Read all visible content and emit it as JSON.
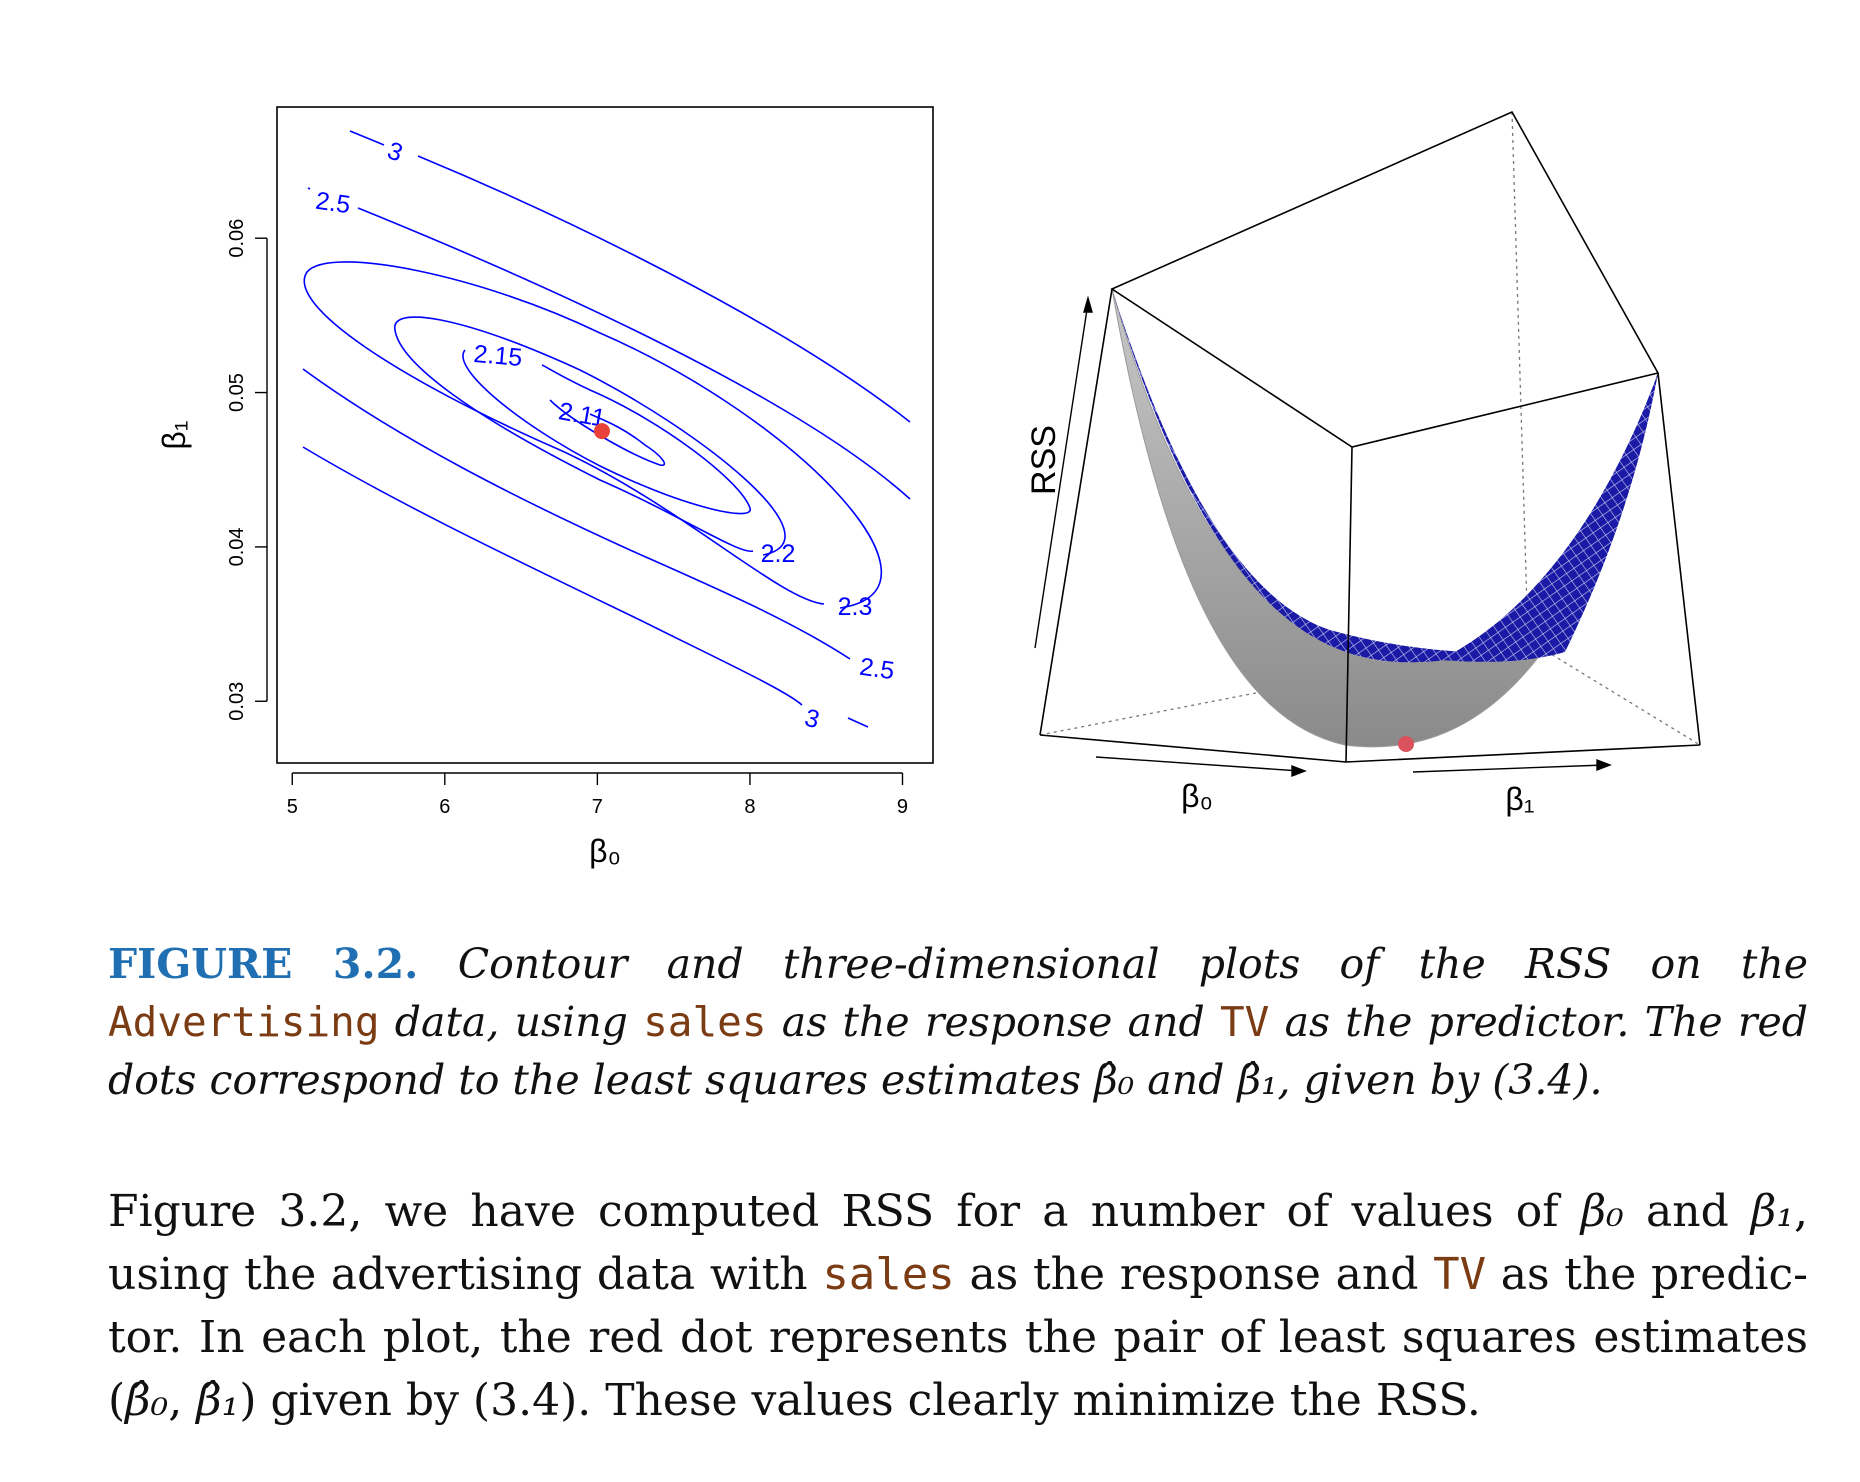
{
  "chart_data": [
    {
      "type": "contour",
      "xlabel": "β₀",
      "ylabel": "β₁",
      "xticks": [
        5,
        6,
        7,
        8,
        9
      ],
      "yticks": [
        0.03,
        0.04,
        0.05,
        0.06
      ],
      "xlim": [
        4.9,
        9.2
      ],
      "ylim": [
        0.026,
        0.0685
      ],
      "grid": false,
      "line_color": "#0000ff",
      "contour_levels": [
        "3",
        "2.5",
        "2.3",
        "2.2",
        "2.15",
        "2.11"
      ],
      "contour_labels": [
        {
          "text": "3",
          "level": 3
        },
        {
          "text": "2.5",
          "level": 2.5
        },
        {
          "text": "2.15",
          "level": 2.15
        },
        {
          "text": "2.11",
          "level": 2.11
        },
        {
          "text": "2.2",
          "level": 2.2
        },
        {
          "text": "2.3",
          "level": 2.3
        },
        {
          "text": "2.5",
          "level": 2.5
        },
        {
          "text": "3",
          "level": 3
        }
      ],
      "minimum_point": {
        "x": 7.03,
        "y": 0.0475,
        "color": "#e8413a"
      }
    },
    {
      "type": "surface3d",
      "xlabel": "β₀",
      "ylabel": "β₁",
      "zlabel": "RSS",
      "surface_color": "#1a1aa6",
      "minimum_point": {
        "color": "#d9525e"
      }
    }
  ],
  "caption": {
    "label": "FIGURE 3.2.",
    "t1": " Contour and three-dimensional plots of the RSS on the ",
    "code1": "Advertising",
    "t2": " data, using ",
    "code2": "sales",
    "t3": " as the response and ",
    "code3": "TV",
    "t4": " as the predictor. The red dots correspond to the least squares estimates ",
    "b0": "β̂₀",
    "t5": " and ",
    "b1": "β̂₁",
    "t6": ", given by (3.4)."
  },
  "body": {
    "t1": "Figure 3.2, we have computed RSS for a number of values of ",
    "b0": "β₀",
    "t2": " and ",
    "b1": "β₁",
    "t3": ", using the advertising data with ",
    "code1": "sales",
    "t4": " as the response and ",
    "code2": "TV",
    "t5": " as the predic­tor. In each plot, the red dot represents the pair of least squares estimates (",
    "b0hat": "β̂₀",
    "t6": ", ",
    "b1hat": "β̂₁",
    "t7": ") given by (3.4). These values clearly minimize the RSS."
  }
}
